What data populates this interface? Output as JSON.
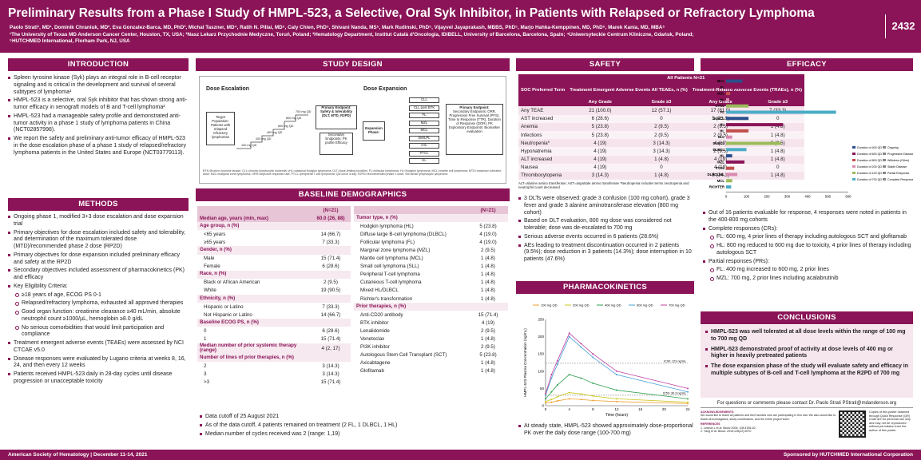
{
  "header": {
    "title": "Preliminary  Results from a Phase I Study of HMPL-523, a Selective, Oral Syk Inhibitor, in Patients with Relapsed or Refractory Lymphoma",
    "authors_1": "Paolo Strati¹, MD¹, Dominik Chraniuk, MD², Eva Gonzalez-Barca, MD, PhD³, Michal Taszner, MD⁴, Ratih N. Pillai, MD⁵, Caly Chien, PhD⁵, Shivani Nanda, MS⁵, Mark Rudinski, PhD⁵, Vijayvel Jayaprakash, MBBS, PhD⁵, Marjo Hahka-Kemppinen, MD, PhD⁵, Marek Kania, MD, MBA⁵",
    "authors_2": "¹The University of Texas MD Anderson Cancer Center, Houston, TX, USA; ²Nasz Lekarz Przychodnie Medyczne, Toruń, Poland; ³Hematology Department, Institut Català d'Oncologia, IDIBELL, University of Barcelona, Barcelona, Spain; ⁴Uniwersyteckie Centrum Kliniczne, Gdańsk, Poland;",
    "authors_3": "⁵HUTCHMED International, Florham Park, NJ, USA",
    "poster_number": "2432"
  },
  "intro": {
    "heading": "INTRODUCTION",
    "bullets": [
      "Spleen tyrosine kinase (Syk) plays an integral role in B-cell receptor signaling and is critical in the development and survival of several subtypes of lymphoma¹",
      "HMPL-523 is a selective, oral Syk inhibitor that has shown strong anti-tumor efficacy in xenograft models of B and T-cell lymphoma²",
      "HMPL-523 had a manageable safety profile and demonstrated anti-tumor activity in a phase 1 study of lymphoma patients in China (NCT02857998).",
      "We report the safety and preliminary anti-tumor efficacy of HMPL-523 in the dose escalation phase of a phase 1 study of relapsed/refractory lymphoma patients in the United States and Europe (NCT03779113)."
    ]
  },
  "methods": {
    "heading": "METHODS",
    "items": [
      {
        "t": "Ongoing phase 1, modified 3+3 dose escalation and dose expansion trial",
        "s": false
      },
      {
        "t": "Primary objectives for dose escalation included safety and tolerability, and determination of the maximum tolerated dose (MTD)/recommended phase 2 dose (RP2D)",
        "s": false
      },
      {
        "t": "Primary objectives for dose expansion included preliminary efficacy and safety at the RP2D",
        "s": false
      },
      {
        "t": "Secondary objectives included assessment of pharmacokinetics (PK) and efficacy",
        "s": false
      },
      {
        "t": "Key Eligibility Criteria:",
        "s": false
      },
      {
        "t": "≥18 years of age, ECOG PS 0-1",
        "s": true
      },
      {
        "t": "Relapsed/refractory lymphoma, exhausted all approved therapies",
        "s": true
      },
      {
        "t": "Good organ function: creatinine clearance ≥40 mL/min, absolute neutrophil count ≥1000/µL, hemoglobin ≥8.0 g/dL",
        "s": true
      },
      {
        "t": "No serious comorbidities that would limit participation and compliance",
        "s": true
      },
      {
        "t": "Treatment emergent adverse events (TEAEs) were assessed by NCI CTCAE v5.0",
        "s": false
      },
      {
        "t": "Disease responses were evaluated by Lugano criteria at weeks 8, 16, 24, and then every 12 weeks",
        "s": false
      },
      {
        "t": "Patients received HMPL-523 daily in 28-day cycles until disease progression or unacceptable toxicity",
        "s": false
      }
    ]
  },
  "study_design": {
    "heading": "STUDY DESIGN",
    "esc": "Dose Escalation",
    "exp": "Dose Expansion",
    "target": "Target Population: Patients with relapsed refractory lymphomas",
    "doses": [
      "100 mg QD",
      "200 mg QD",
      "400 mg QD",
      "600 mg QD",
      "800 mg QD",
      "700 mg QD"
    ],
    "primary": "Primary Endpoint: Safety & tolerability (DLT, MTD, R2PD)",
    "secondary": "Secondary Endpoints: PK profile Efficacy",
    "phase": "Expansion Phase:",
    "cohorts": [
      "CLL",
      "CLL post BTK",
      "FL",
      "MZL",
      "MCL",
      "SM/LPL",
      "cHL",
      "PTCL",
      "HL"
    ],
    "exp_primary": "Primary Endpoint:",
    "exp_secondary": "Secondary Endpoints: ORR, Progression Free Survival (PFS), Time to Response (TTR), Duration of Response (DOR), PK",
    "exp_explor": "Exploratory Endpoints: Biomarker evaluation",
    "footnote": "BTK=Bruton's tyrosine kinase; CLL=chronic lymphocytic leukemia; cHL=classical Hodgkin lymphoma; DLT=dose-limiting toxicities; FL=follicular lymphoma; HL=Hodgkin lymphoma; MCL=mantle cell lymphoma; MTD=maximum tolerated dose; MZL=marginal zone lymphoma; ORR=objective response rate; PTCL=peripheral T-cell lymphoma; QD=once a day; R2PD=recommended phase 2 dose; SM=small lymphocytic lymphoma"
  },
  "baseline": {
    "heading": "BASELINE DEMOGRAPHICS",
    "n_header": "(N=21)",
    "left": [
      {
        "l": "Median age, years (min, max)",
        "v": "60.0 (26, 88)",
        "t": "h"
      },
      {
        "l": "Age group, n (%)",
        "v": "",
        "t": "sub"
      },
      {
        "l": "<65 years",
        "v": "14 (66.7)",
        "t": "i"
      },
      {
        "l": "≥65 years",
        "v": "7 (33.3)",
        "t": "i"
      },
      {
        "l": "Gender, n (%)",
        "v": "",
        "t": "sub"
      },
      {
        "l": "Male",
        "v": "15 (71.4)",
        "t": "i"
      },
      {
        "l": "Female",
        "v": "6 (28.6)",
        "t": "i"
      },
      {
        "l": "Race, n (%)",
        "v": "",
        "t": "sub"
      },
      {
        "l": "Black or African American",
        "v": "2 (9.5)",
        "t": "i"
      },
      {
        "l": "White",
        "v": "19 (90.5)",
        "t": "i"
      },
      {
        "l": "Ethnicity, n (%)",
        "v": "",
        "t": "sub"
      },
      {
        "l": "Hispanic or Latino",
        "v": "7 (33.3)",
        "t": "i"
      },
      {
        "l": "Not Hispanic or Latino",
        "v": "14 (66.7)",
        "t": "i"
      },
      {
        "l": "Baseline ECOG PS, n (%)",
        "v": "",
        "t": "sub"
      },
      {
        "l": "0",
        "v": "6 (28.6)",
        "t": "i"
      },
      {
        "l": "1",
        "v": "15 (71.4)",
        "t": "i"
      },
      {
        "l": "Median number of prior systemic therapy (range)",
        "v": "4 (2, 17)",
        "t": "sub"
      },
      {
        "l": "Number of lines of prior therapies, n (%)",
        "v": "",
        "t": "sub"
      },
      {
        "l": "2",
        "v": "3 (14.3)",
        "t": "i"
      },
      {
        "l": "3",
        "v": "3 (14.3)",
        "t": "i"
      },
      {
        "l": ">3",
        "v": "15 (71.4)",
        "t": "i"
      }
    ],
    "right": [
      {
        "l": "Tumor type, n (%)",
        "v": "",
        "t": "sub"
      },
      {
        "l": "Hodgkin lymphoma (HL)",
        "v": "5 (23.8)",
        "t": "i"
      },
      {
        "l": "Diffuse large B-cell lymphoma (DLBCL)",
        "v": "4 (19.0)",
        "t": "i"
      },
      {
        "l": "Follicular lymphoma (FL)",
        "v": "4 (19.0)",
        "t": "i"
      },
      {
        "l": "Marginal zone lymphoma (MZL)",
        "v": "2 (9.5)",
        "t": "i"
      },
      {
        "l": "Mantle cell lymphoma (MCL)",
        "v": "1 (4.8)",
        "t": "i"
      },
      {
        "l": "Small cell lymphoma (SLL)",
        "v": "1 (4.8)",
        "t": "i"
      },
      {
        "l": "Peripheral T-cell lymphoma",
        "v": "1 (4.8)",
        "t": "i"
      },
      {
        "l": "Cutaneous T-cell lymphoma",
        "v": "1 (4.8)",
        "t": "i"
      },
      {
        "l": "Mixed HL/DLBCL",
        "v": "1 (4.8)",
        "t": "i"
      },
      {
        "l": "Richter's transformation",
        "v": "1 (4.8)",
        "t": "i"
      },
      {
        "l": "Prior therapies, n (%)",
        "v": "",
        "t": "sub"
      },
      {
        "l": "Anti-CD20 antibody",
        "v": "15 (71.4)",
        "t": "i"
      },
      {
        "l": "BTK inhibitor",
        "v": "4 (19)",
        "t": "i"
      },
      {
        "l": "Lenalidomide",
        "v": "2 (9.5)",
        "t": "i"
      },
      {
        "l": "Venetoclax",
        "v": "1 (4.8)",
        "t": "i"
      },
      {
        "l": "PI3K inhibitor",
        "v": "2 (9.5)",
        "t": "i"
      },
      {
        "l": "Autologous Stem Cell Transplant (SCT)",
        "v": "5 (23.8)",
        "t": "i"
      },
      {
        "l": "Axicabtagene",
        "v": "1 (4.8)",
        "t": "i"
      },
      {
        "l": "Glofitamab",
        "v": "1 (4.8)",
        "t": "i"
      }
    ],
    "bullets": [
      "Data cutoff of 25 August 2021",
      "As of the data cutoff, 4 patients remained on treatment (2 FL, 1 DLBCL, 1 HL)",
      "Median number of cycles received was 2 (range: 1,19)"
    ]
  },
  "safety": {
    "heading": "SAFETY",
    "all": "All Patients N=21",
    "col_pt": "SOC Preferred Term",
    "col_teae": "Treatment Emergent Adverse Events All TEAEs, n (%)",
    "col_trae": "Treatment-Related Adverse Events (TRAEs), n (%)",
    "any": "Any Grade",
    "g3": "Grade ≥3",
    "rows": [
      [
        "Any TEAE",
        "21 (100.0)",
        "12 (57.1)",
        "17 (81.0)",
        "7 (33.3)"
      ],
      [
        "AST increased",
        "6 (28.6)",
        "0",
        "5 (23.8)",
        "0"
      ],
      [
        "Anemia",
        "5 (23.8)",
        "2 (9.5)",
        "2 (9.5)",
        "1 (4.8)"
      ],
      [
        "Infections",
        "5 (23.8)",
        "2 (9.5)",
        "2 (9.5)",
        "1 (4.8)"
      ],
      [
        "Neutropenia*",
        "4 (19)",
        "3 (14.3)",
        "4 (19)",
        "2 (9.5)"
      ],
      [
        "Hyponatremia",
        "4 (19)",
        "3 (14.3)",
        "2 (9.5)",
        "1 (4.8)"
      ],
      [
        "ALT increased",
        "4 (19)",
        "1 (4.8)",
        "4 (19)",
        "1 (4.8)"
      ],
      [
        "Nausea",
        "4 (19)",
        "0",
        "4 (19)",
        "0"
      ],
      [
        "Thrombocytopenia",
        "3 (14.3)",
        "1 (4.8)",
        "3 (14.3)",
        "1 (4.8)"
      ]
    ],
    "footnote": "ALT=alanine amino transferase; AST=aspartate amino transferase *Neutropenia includes terms neutropenia and neutrophil count decreased",
    "bullets": [
      "3 DLTs were observed: grade 3 confusion (100 mg cohort), grade 3 fever and grade 3 alanine aminotransferase elevation (800 mg cohort)",
      "Based on DLT evaluation, 800 mg dose was considered not tolerable; dose was de-escalated to 700 mg",
      "Serious adverse events occurred in 6 patients (28.6%)",
      "AEs leading to treatment discontinuation occurred in 2 patients (9.5%); dose reduction in 3 patients (14.3%); dose interruption in 10 patients (47.6%)"
    ]
  },
  "pk": {
    "heading": "PHARMACOKINETICS",
    "bullet": "At steady state, HMPL-523 showed approximately dose-proportional PK over the daily dose range (100-700 mg)"
  },
  "efficacy": {
    "heading": "EFFICACY",
    "bullets": [
      {
        "t": "Out of 16 patients evaluable for response, 4 responses were noted in patients in the 400-800 mg cohorts",
        "s": false
      },
      {
        "t": "Complete responses (CRs):",
        "s": false
      },
      {
        "t": "FL: 600 mg, 4 prior lines of therapy including autologous SCT and glofitamab",
        "s": true
      },
      {
        "t": "HL: 800 mg reduced to 600 mg due to toxicity, 4 prior lines of therapy including autologous SCT",
        "s": true
      },
      {
        "t": "Partial responses (PRs):",
        "s": false
      },
      {
        "t": "FL: 400 mg increased to 600 mg, 2 prior lines",
        "s": true
      },
      {
        "t": "MZL: 700 mg, 2 prior lines including acalabrutinib",
        "s": true
      }
    ]
  },
  "conclusions": {
    "heading": "CONCLUSIONS",
    "items": [
      "HMPL-523 was well tolerated at all dose levels within the range of 100 mg to 700 mg QD",
      "HMPL-523 demonstrated proof of activity at dose levels of 400 mg or higher in heavily pretreated patients",
      "The dose expansion phase of the study will evaluate safety and efficacy in multiple subtypes of B-cell and T-cell lymphoma at the R2PD of 700 mg"
    ],
    "contact": "For questions or comments please contact Dr. Paolo Strati PStrati@mdanderson.org",
    "ack_title": "ACKNOWLEDGEMENTS",
    "ack": "We would like to thank all patients and their families who are participating in this trial. We also would like to thank all investigators, study coordinators, and the entire project team.",
    "ref_title": "REFERENCES",
    "refs": [
      "1. Leseux L et al. Blood 2006; 108:4156-62.",
      "2. Yang et al. Blood. 2016;128(22):3070"
    ],
    "qr_note": "Copies of this poster obtained through Quick Response (QR) Code are for personal use only and may not be reproduced without permission from the author of this poster."
  },
  "footer": {
    "left": "American Society of Hematology | December 11-14, 2021",
    "right": "Sponsored by HUTCHMED International Corporation"
  },
  "chart_data": [
    {
      "type": "bar",
      "orientation": "horizontal",
      "title": "",
      "xlabel": "",
      "xlim": [
        0,
        600
      ],
      "xticks": [
        0,
        100,
        200,
        300,
        400,
        500,
        600
      ],
      "categories": [
        "MCL",
        "FL",
        "MZL",
        "HL",
        "CTCL",
        "FL",
        "DLBCL",
        "HL",
        "HL",
        "SLL",
        "DLBCL",
        "DLBCL",
        "HL",
        "MZL",
        "PTCL",
        "DLBCL/HL",
        "MCL",
        "RICHTER"
      ],
      "values": [
        80,
        110,
        20,
        15,
        110,
        540,
        110,
        280,
        110,
        30,
        270,
        100,
        30,
        90,
        40,
        55,
        30,
        25
      ],
      "legend": [
        "Duration of 400 QD",
        "Duration of 600 QD",
        "Duration of 800 QD",
        "Duration of 200 QD",
        "Duration of 100 QD",
        "Duration of 700 QD",
        "Ongoing",
        "Progressive Disease",
        "Withdrew (Other)",
        "Stable Disease",
        "Partial Response",
        "Complete Response"
      ],
      "colors": {
        "400 QD": "#2b4f8c",
        "600 QD": "#8a1457",
        "800 QD": "#c0504d",
        "200 QD": "#d98ab0",
        "100 QD": "#9bbb59",
        "700 QD": "#4bacc6"
      }
    },
    {
      "type": "line",
      "title": "",
      "xlabel": "Time (hours)",
      "ylabel": "HMPL-523 Plasma Concentration (ng/mL)",
      "xlim": [
        0,
        24
      ],
      "ylim": [
        0,
        250
      ],
      "xticks": [
        0,
        4,
        8,
        12,
        16,
        20,
        24
      ],
      "yticks": [
        0,
        50,
        100,
        150,
        200,
        250
      ],
      "x": [
        0,
        1,
        2,
        4,
        6,
        8,
        12,
        24
      ],
      "series": [
        {
          "name": "100 mg QD",
          "color": "#f0a030",
          "values": [
            8,
            10,
            14,
            20,
            18,
            15,
            12,
            6
          ]
        },
        {
          "name": "200 mg QD",
          "color": "#c8c820",
          "values": [
            12,
            18,
            26,
            38,
            34,
            28,
            20,
            10
          ]
        },
        {
          "name": "400 mg QD",
          "color": "#30a050",
          "values": [
            20,
            40,
            60,
            90,
            80,
            65,
            45,
            20
          ]
        },
        {
          "name": "600 mg QD",
          "color": "#4aa0d8",
          "values": [
            30,
            80,
            120,
            200,
            170,
            140,
            90,
            40
          ]
        },
        {
          "name": "700 mg QD",
          "color": "#c040a0",
          "values": [
            35,
            90,
            130,
            210,
            180,
            150,
            100,
            50
          ]
        }
      ],
      "annotations": [
        "IC90: 123 ng/mL",
        "IC50: 30.3 ng/mL"
      ]
    }
  ]
}
